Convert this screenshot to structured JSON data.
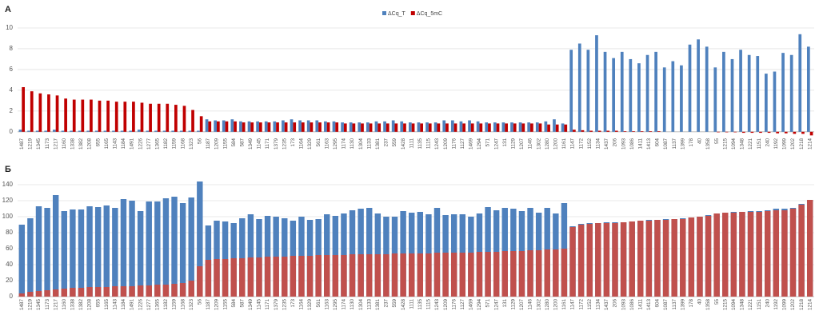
{
  "chart_data": [
    {
      "type": "bar",
      "barmode": "group",
      "label": "А",
      "legend": "top",
      "categories": [
        "1487",
        "1219",
        "1345",
        "1173",
        "1217",
        "1160",
        "1338",
        "1382",
        "1208",
        "655",
        "1165",
        "1143",
        "1184",
        "1491",
        "1226",
        "1277",
        "1365",
        "1182",
        "1159",
        "1168",
        "1323",
        "56",
        "1187",
        "1209",
        "1155",
        "584",
        "587",
        "1349",
        "1145",
        "1171",
        "1379",
        "1235",
        "173",
        "1164",
        "1329",
        "561",
        "1163",
        "1295",
        "1174",
        "1130",
        "1304",
        "1133",
        "1381",
        "237",
        "559",
        "1428",
        "1111",
        "1135",
        "1115",
        "1243",
        "1209",
        "1176",
        "1127",
        "1469",
        "1294",
        "571",
        "1247",
        "131",
        "1129",
        "1207",
        "1146",
        "1302",
        "1280",
        "1200",
        "1161",
        "1147",
        "1172",
        "1152",
        "1134",
        "1437",
        "206",
        "1093",
        "1086",
        "1411",
        "1413",
        "604",
        "1087",
        "1137",
        "1399",
        "178",
        "40",
        "1358",
        "55",
        "1215",
        "1094",
        "1348",
        "1221",
        "1151",
        "240",
        "1192",
        "1099",
        "1202",
        "1218",
        "1214"
      ],
      "series": [
        {
          "name": "ΔCq_T",
          "color": "#4f81bd",
          "values": [
            0.2,
            0.1,
            0.1,
            0.1,
            0.2,
            0.1,
            0.1,
            0.1,
            0.1,
            0.1,
            0.1,
            0.1,
            0.1,
            0.1,
            0.2,
            0.1,
            0.1,
            0.1,
            0.1,
            0.1,
            0.1,
            0.1,
            1.2,
            1.1,
            1.1,
            1.2,
            1.0,
            1.0,
            1.0,
            1.0,
            1.0,
            1.1,
            1.2,
            1.1,
            1.1,
            1.1,
            1.0,
            1.0,
            0.9,
            0.9,
            0.9,
            0.9,
            1.0,
            1.0,
            1.1,
            1.0,
            0.9,
            0.9,
            0.9,
            0.9,
            1.1,
            1.1,
            1.0,
            1.1,
            1.0,
            0.9,
            0.9,
            0.9,
            0.9,
            0.9,
            0.9,
            0.9,
            1.0,
            1.2,
            0.8,
            7.9,
            8.5,
            7.9,
            9.3,
            7.7,
            7.1,
            7.7,
            7.0,
            6.6,
            7.4,
            7.7,
            6.2,
            6.8,
            6.4,
            8.4,
            8.9,
            8.2,
            6.2,
            7.7,
            7.0,
            7.9,
            7.4,
            7.3,
            5.6,
            5.8,
            7.6,
            7.4,
            9.4,
            8.2
          ]
        },
        {
          "name": "ΔCq_5mC",
          "color": "#c00000",
          "values": [
            4.3,
            3.9,
            3.7,
            3.6,
            3.5,
            3.2,
            3.1,
            3.1,
            3.1,
            3.0,
            3.0,
            2.9,
            2.9,
            2.9,
            2.8,
            2.7,
            2.7,
            2.7,
            2.6,
            2.5,
            2.1,
            1.5,
            1.0,
            1.0,
            1.0,
            1.0,
            0.9,
            0.9,
            0.9,
            0.9,
            0.9,
            0.9,
            0.9,
            0.9,
            0.9,
            0.9,
            0.9,
            0.9,
            0.8,
            0.8,
            0.8,
            0.8,
            0.8,
            0.8,
            0.8,
            0.8,
            0.8,
            0.8,
            0.8,
            0.8,
            0.8,
            0.8,
            0.8,
            0.8,
            0.8,
            0.8,
            0.8,
            0.8,
            0.8,
            0.8,
            0.8,
            0.8,
            0.7,
            0.7,
            0.7,
            0.2,
            0.15,
            0.1,
            0.1,
            0.1,
            0.1,
            0.05,
            0.05,
            0.05,
            0.05,
            0.05,
            0,
            0,
            0,
            0,
            0,
            0,
            -0.05,
            -0.05,
            -0.05,
            -0.1,
            -0.1,
            -0.1,
            -0.1,
            -0.15,
            -0.15,
            -0.2,
            -0.2,
            -0.35
          ]
        }
      ],
      "ylim": [
        -0.4,
        10
      ],
      "yticks": [
        0,
        2,
        4,
        6,
        8,
        10
      ],
      "grid": true
    },
    {
      "type": "bar",
      "barmode": "overlay",
      "label": "Б",
      "categories": [
        "1487",
        "1219",
        "1345",
        "1173",
        "1217",
        "1160",
        "1338",
        "1382",
        "1208",
        "655",
        "1165",
        "1143",
        "1184",
        "1491",
        "1226",
        "1277",
        "1365",
        "1182",
        "1159",
        "1168",
        "1323",
        "56",
        "1187",
        "1209",
        "1155",
        "584",
        "587",
        "1349",
        "1145",
        "1171",
        "1379",
        "1235",
        "173",
        "1164",
        "1329",
        "561",
        "1163",
        "1295",
        "1174",
        "1130",
        "1304",
        "1133",
        "1381",
        "237",
        "559",
        "1428",
        "1111",
        "1135",
        "1115",
        "1243",
        "1209",
        "1176",
        "1127",
        "1469",
        "1294",
        "571",
        "1247",
        "131",
        "1129",
        "1207",
        "1146",
        "1302",
        "1280",
        "1200",
        "1161",
        "1147",
        "1172",
        "1152",
        "1134",
        "1437",
        "206",
        "1093",
        "1086",
        "1411",
        "1413",
        "604",
        "1087",
        "1137",
        "1399",
        "178",
        "40",
        "1358",
        "55",
        "1215",
        "1094",
        "1348",
        "1221",
        "1151",
        "240",
        "1192",
        "1099",
        "1202",
        "1218",
        "1214"
      ],
      "series": [
        {
          "color": "#4f81bd",
          "values": [
            90,
            98,
            113,
            111,
            127,
            107,
            109,
            109,
            113,
            112,
            114,
            111,
            122,
            120,
            107,
            119,
            119,
            123,
            125,
            117,
            124,
            144,
            89,
            95,
            94,
            92,
            98,
            103,
            97,
            101,
            100,
            98,
            95,
            100,
            96,
            97,
            103,
            101,
            104,
            108,
            110,
            111,
            104,
            100,
            100,
            107,
            105,
            106,
            103,
            111,
            102,
            103,
            103,
            100,
            104,
            112,
            108,
            111,
            110,
            107,
            111,
            105,
            111,
            104,
            117,
            88,
            91,
            92,
            92,
            93,
            93,
            93,
            94,
            95,
            96,
            96,
            97,
            97,
            98,
            99,
            100,
            102,
            104,
            105,
            106,
            106,
            107,
            107,
            108,
            110,
            110,
            111,
            116,
            121
          ]
        },
        {
          "color": "#c0504d",
          "values": [
            4,
            6,
            7,
            8,
            9,
            10,
            11,
            11,
            12,
            12,
            12,
            13,
            13,
            13,
            14,
            14,
            15,
            15,
            16,
            17,
            20,
            38,
            46,
            47,
            47,
            48,
            48,
            49,
            49,
            50,
            50,
            50,
            51,
            51,
            51,
            52,
            52,
            52,
            52,
            53,
            53,
            53,
            53,
            53,
            54,
            54,
            54,
            54,
            54,
            55,
            55,
            55,
            55,
            55,
            56,
            56,
            56,
            57,
            57,
            57,
            58,
            58,
            59,
            59,
            60,
            87,
            90,
            91,
            92,
            92,
            92,
            93,
            94,
            95,
            95,
            96,
            96,
            97,
            97,
            99,
            100,
            101,
            104,
            105,
            105,
            106,
            106,
            106,
            107,
            108,
            108,
            110,
            115,
            121
          ]
        }
      ],
      "ylim": [
        0,
        145
      ],
      "yticks": [
        0,
        20,
        40,
        60,
        80,
        100,
        120,
        140
      ],
      "grid": true
    }
  ]
}
